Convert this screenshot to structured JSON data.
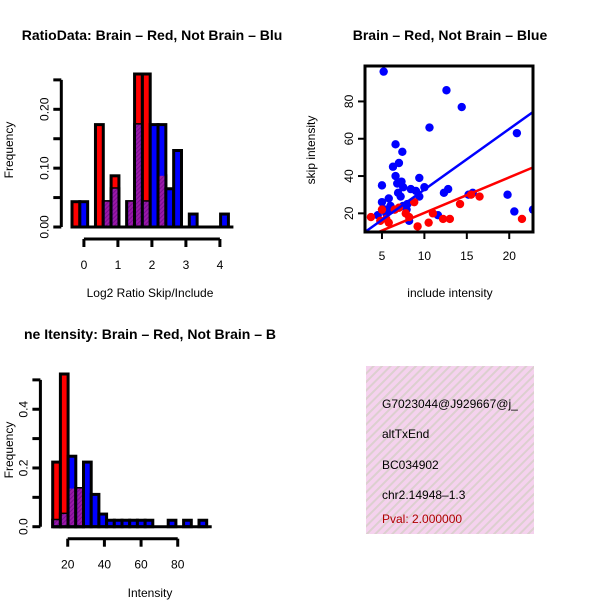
{
  "colors": {
    "red": "#ff0000",
    "blue": "#0000ff",
    "purple": "#9a1aa8",
    "box": "#f5d2ee",
    "pval": "#b00000"
  },
  "chart_data": [
    {
      "type": "bar",
      "title": "RatioData: Brain – Red, Not Brain – Blu",
      "xlabel": "Log2 Ratio Skip/Include",
      "ylabel": "Frequency",
      "xlim": [
        -0.4,
        4.3
      ],
      "ylim": [
        0,
        0.26
      ],
      "xticks": [
        "0",
        "1",
        "2",
        "3",
        "4"
      ],
      "xtick_values": [
        0,
        1,
        2,
        3,
        4
      ],
      "yticks": [
        "0.00",
        "0.10",
        "0.20"
      ],
      "ytick_values": [
        0,
        0.05,
        0.1,
        0.15,
        0.2,
        0.25
      ],
      "ytick_labeled": [
        0,
        0.1,
        0.2
      ],
      "bin_width": 0.23,
      "bin_starts": [
        -0.35,
        -0.12,
        0.34,
        0.57,
        0.8,
        1.26,
        1.49,
        1.72,
        1.95,
        2.18,
        2.41,
        2.64,
        3.1,
        4.02
      ],
      "series": [
        {
          "name": "Brain",
          "color": "red",
          "values": [
            0.043,
            0,
            0.174,
            0.043,
            0.087,
            0.043,
            0.26,
            0.26,
            0,
            0.087,
            0,
            0,
            0,
            0
          ]
        },
        {
          "name": "Not Brain",
          "color": "blue",
          "values": [
            0,
            0.043,
            0,
            0.043,
            0.065,
            0.043,
            0.174,
            0.043,
            0.174,
            0.174,
            0.065,
            0.13,
            0.022,
            0.022
          ]
        }
      ]
    },
    {
      "type": "scatter",
      "title": "Brain – Red, Not Brain – Blue",
      "xlabel": "include intensity",
      "ylabel": "skip intensity",
      "xlim": [
        3.0,
        22.8
      ],
      "ylim": [
        10,
        99
      ],
      "xticks": [
        "5",
        "10",
        "15",
        "20"
      ],
      "xtick_values": [
        5,
        10,
        15,
        20
      ],
      "yticks": [
        "20",
        "40",
        "60",
        "80"
      ],
      "ytick_values": [
        20,
        40,
        60,
        80
      ],
      "series": [
        {
          "name": "Not Brain",
          "color": "blue",
          "points": [
            [
              5.2,
              96
            ],
            [
              12.6,
              86
            ],
            [
              14.4,
              77
            ],
            [
              10.6,
              66
            ],
            [
              20.9,
              63
            ],
            [
              6.6,
              57
            ],
            [
              7.4,
              53
            ],
            [
              7.0,
              47
            ],
            [
              6.3,
              45
            ],
            [
              6.6,
              40
            ],
            [
              9.4,
              39
            ],
            [
              5.0,
              35
            ],
            [
              7.3,
              37
            ],
            [
              6.8,
              36
            ],
            [
              7.5,
              34
            ],
            [
              10.0,
              34
            ],
            [
              8.4,
              33
            ],
            [
              9.0,
              32
            ],
            [
              6.9,
              31
            ],
            [
              12.8,
              33
            ],
            [
              12.3,
              31
            ],
            [
              19.8,
              30
            ],
            [
              15.2,
              30
            ],
            [
              15.7,
              31
            ],
            [
              7.2,
              29
            ],
            [
              9.4,
              29
            ],
            [
              5.8,
              28
            ],
            [
              8.0,
              25
            ],
            [
              5.0,
              26
            ],
            [
              6.0,
              24
            ],
            [
              5.4,
              22
            ],
            [
              7.9,
              22
            ],
            [
              20.6,
              21
            ],
            [
              22.8,
              22
            ],
            [
              11.6,
              19
            ],
            [
              4.5,
              19
            ],
            [
              7.5,
              24
            ],
            [
              8.2,
              16
            ],
            [
              5.5,
              20
            ],
            [
              6.2,
              22
            ]
          ],
          "fit": [
            [
              3.0,
              10
            ],
            [
              23.0,
              75
            ]
          ]
        },
        {
          "name": "Brain",
          "color": "red",
          "points": [
            [
              3.7,
              18
            ],
            [
              5.0,
              22
            ],
            [
              5.5,
              17
            ],
            [
              5.8,
              15
            ],
            [
              6.5,
              22
            ],
            [
              7.0,
              23
            ],
            [
              8.2,
              18
            ],
            [
              8.8,
              26
            ],
            [
              9.2,
              13
            ],
            [
              10.5,
              15
            ],
            [
              11.0,
              20
            ],
            [
              12.2,
              17
            ],
            [
              13.0,
              17
            ],
            [
              14.2,
              25
            ],
            [
              15.5,
              30
            ],
            [
              16.5,
              29
            ],
            [
              21.5,
              17
            ],
            [
              4.8,
              16
            ],
            [
              7.8,
              20
            ]
          ],
          "fit": [
            [
              4.6,
              10
            ],
            [
              23.0,
              45
            ]
          ]
        }
      ]
    },
    {
      "type": "bar",
      "title": "ne Itensity: Brain – Red, Not Brain – B",
      "xlabel": "Intensity",
      "ylabel": "Frequency",
      "xlim": [
        10,
        100
      ],
      "ylim": [
        0,
        0.52
      ],
      "xticks": [
        "20",
        "40",
        "60",
        "80"
      ],
      "xtick_values": [
        20,
        40,
        60,
        80
      ],
      "yticks": [
        "0.0",
        "0.2",
        "0.4"
      ],
      "ytick_values": [
        0,
        0.1,
        0.2,
        0.3,
        0.4,
        0.5
      ],
      "ytick_labeled": [
        0,
        0.2,
        0.4
      ],
      "bin_width": 4.2,
      "bin_starts": [
        11.8,
        16.0,
        20.2,
        24.4,
        28.6,
        32.8,
        37.0,
        41.2,
        45.4,
        49.6,
        53.8,
        58.0,
        62.2,
        74.8,
        83.2,
        91.6
      ],
      "series": [
        {
          "name": "Brain",
          "color": "red",
          "values": [
            0.22,
            0.52,
            0.13,
            0.13,
            0,
            0,
            0,
            0,
            0,
            0,
            0,
            0,
            0,
            0,
            0,
            0
          ]
        },
        {
          "name": "Not Brain",
          "color": "blue",
          "values": [
            0.022,
            0.043,
            0.24,
            0.13,
            0.22,
            0.11,
            0.043,
            0.022,
            0.022,
            0.022,
            0.022,
            0.022,
            0.022,
            0.022,
            0.022,
            0.022
          ]
        }
      ]
    }
  ],
  "info": {
    "lines": [
      "G7023044@J929667@j_",
      "altTxEnd",
      "BC034902",
      "chr2.14948–1.3"
    ],
    "pval": "Pval: 2.000000"
  }
}
